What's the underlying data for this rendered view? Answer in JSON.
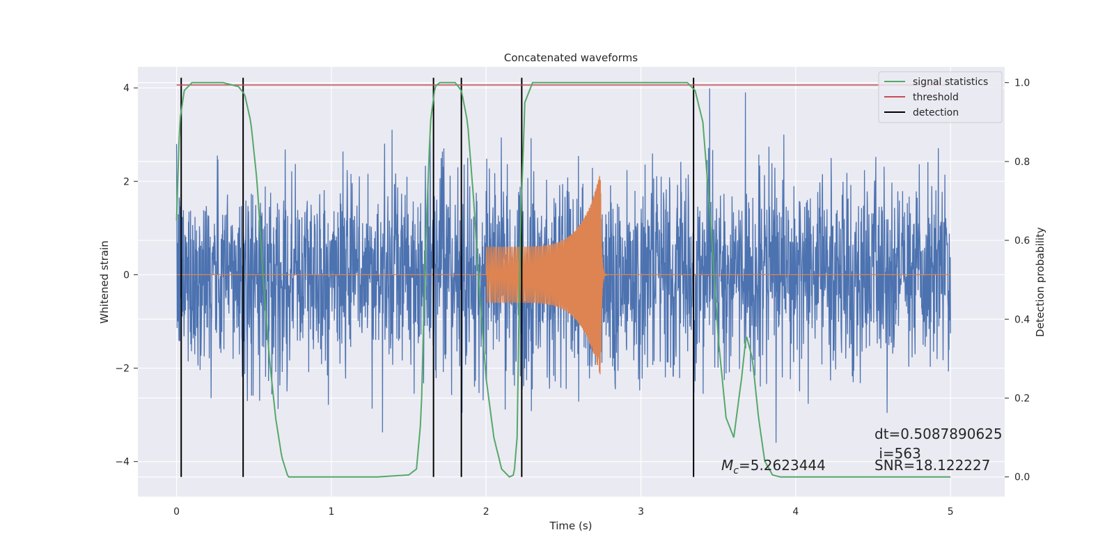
{
  "chart_data": {
    "type": "line",
    "title": "Concatenated waveforms",
    "xlabel": "Time (s)",
    "ylabel": "Whitened strain",
    "ylabel_right": "Detection probability",
    "xlim": [
      -0.25,
      5.35
    ],
    "ylim": [
      -4.75,
      4.45
    ],
    "ylim_right": [
      -0.05,
      1.04
    ],
    "x_ticks": [
      0,
      1,
      2,
      3,
      4,
      5
    ],
    "x_tick_labels": [
      "0",
      "1",
      "2",
      "3",
      "4",
      "5"
    ],
    "y_ticks": [
      -4,
      -2,
      0,
      2,
      4
    ],
    "y_tick_labels": [
      "−4",
      "−2",
      "0",
      "2",
      "4"
    ],
    "y_right_ticks": [
      0.0,
      0.2,
      0.4,
      0.6,
      0.8,
      1.0
    ],
    "y_right_tick_labels": [
      "0.0",
      "0.2",
      "0.4",
      "0.6",
      "0.8",
      "1.0"
    ],
    "grid": true,
    "legend_position": "top-right",
    "colors": {
      "background": "#eaeaf2",
      "grid": "#ffffff",
      "strain": "#4c72b0",
      "template": "#dd8452",
      "signal_statistics": "#55a868",
      "threshold": "#c44e52",
      "detection": "#000000"
    },
    "series": [
      {
        "name": "signal statistics",
        "axis": "right",
        "x": [
          0.0,
          0.02,
          0.05,
          0.1,
          0.2,
          0.3,
          0.4,
          0.44,
          0.48,
          0.52,
          0.56,
          0.6,
          0.64,
          0.68,
          0.72,
          0.8,
          1.0,
          1.3,
          1.5,
          1.55,
          1.58,
          1.61,
          1.64,
          1.67,
          1.7,
          1.75,
          1.8,
          1.84,
          1.88,
          1.92,
          1.96,
          2.0,
          2.05,
          2.1,
          2.15,
          2.18,
          2.2,
          2.22,
          2.25,
          2.3,
          2.6,
          3.0,
          3.3,
          3.35,
          3.4,
          3.45,
          3.5,
          3.55,
          3.6,
          3.65,
          3.68,
          3.72,
          3.76,
          3.8,
          3.85,
          3.9,
          4.2,
          4.6,
          5.0
        ],
        "y": [
          0.65,
          0.9,
          0.98,
          1.0,
          1.0,
          1.0,
          0.99,
          0.97,
          0.9,
          0.75,
          0.5,
          0.3,
          0.15,
          0.05,
          0.0,
          0.0,
          0.0,
          0.0,
          0.005,
          0.02,
          0.15,
          0.6,
          0.9,
          0.99,
          1.0,
          1.0,
          1.0,
          0.98,
          0.9,
          0.7,
          0.45,
          0.25,
          0.1,
          0.02,
          0.0,
          0.005,
          0.1,
          0.6,
          0.95,
          1.0,
          1.0,
          1.0,
          1.0,
          0.98,
          0.9,
          0.65,
          0.35,
          0.15,
          0.1,
          0.25,
          0.36,
          0.3,
          0.15,
          0.04,
          0.005,
          0.0,
          0.0,
          0.0,
          0.0
        ]
      },
      {
        "name": "threshold",
        "axis": "right",
        "x": [
          0.0,
          5.0
        ],
        "y": [
          0.994,
          0.994
        ]
      },
      {
        "name": "detection",
        "axis": "right",
        "x": [
          0.03,
          0.43,
          1.66,
          1.84,
          2.23,
          3.34
        ],
        "y_range": [
          0.0,
          1.0
        ]
      }
    ],
    "strain_envelope": {
      "x": [
        0.0,
        0.5,
        1.0,
        1.5,
        2.0,
        2.5,
        3.0,
        3.5,
        4.0,
        4.5,
        5.0
      ],
      "amplitude": [
        2.4,
        2.5,
        2.3,
        2.5,
        2.6,
        3.0,
        2.6,
        2.4,
        2.5,
        2.4,
        2.3
      ],
      "time_range": [
        0.0,
        5.0
      ]
    },
    "template": {
      "time_range": [
        2.0,
        2.79
      ],
      "merger_time": 2.74,
      "start_amplitude": 0.6,
      "peak_amplitude": 2.2
    },
    "annotations": [
      {
        "text": "dt=0.5087890625",
        "x": 4.5,
        "y": -3.45
      },
      {
        "text": " i=563",
        "x": 4.5,
        "y": -3.85
      },
      {
        "text": "SNR=18.122227",
        "x": 4.5,
        "y": -4.1
      },
      {
        "text": "=5.2623444",
        "prefix_math": "M_c",
        "x": 3.5,
        "y": -4.1
      }
    ]
  },
  "legend": {
    "items": [
      "signal statistics",
      "threshold",
      "detection"
    ]
  },
  "annotation_text": {
    "mc_symbol": "M",
    "mc_sub": "c",
    "mc_value": "=5.2623444",
    "dt": "dt=0.5087890625",
    "i": " i=563",
    "snr": "SNR=18.122227"
  }
}
